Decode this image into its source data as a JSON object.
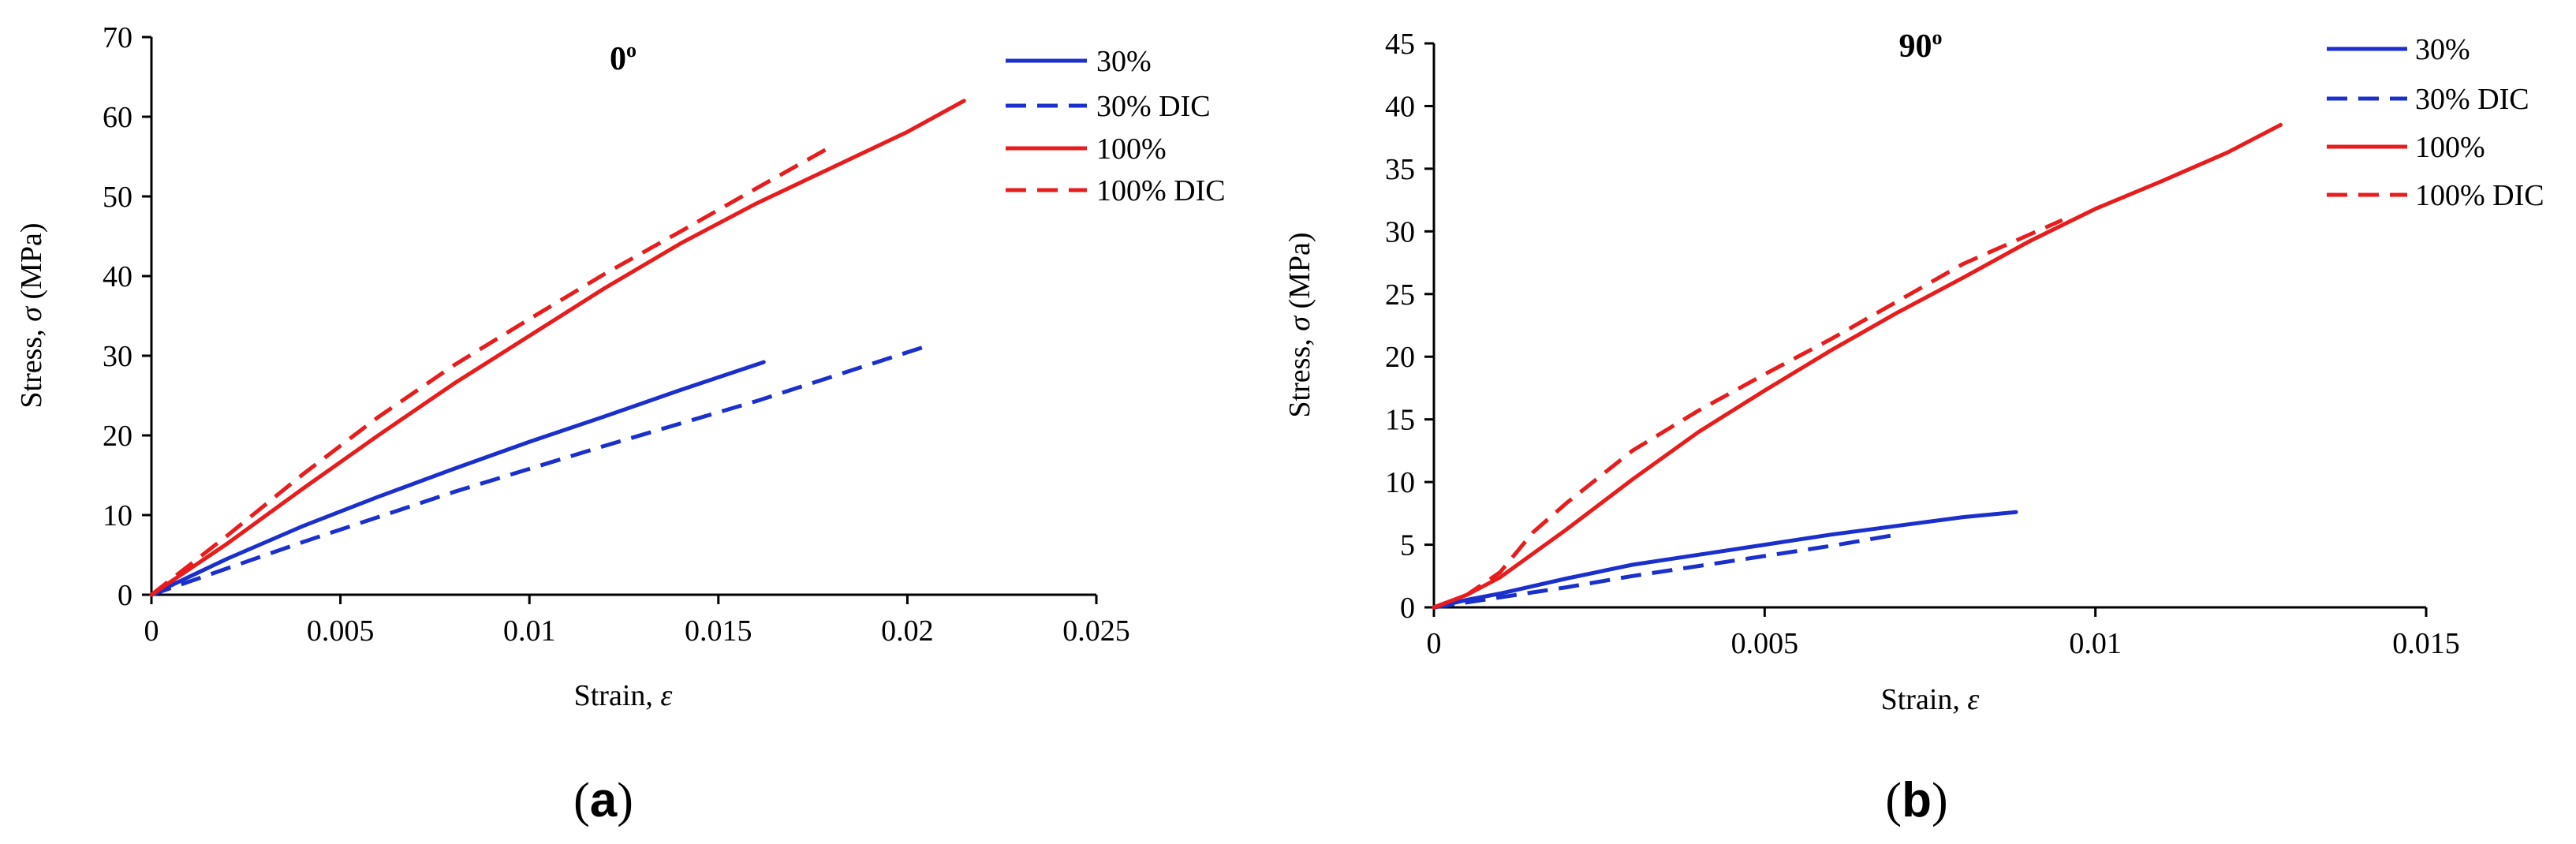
{
  "charts": [
    {
      "panel_label": "(a)",
      "panel_letter": "a",
      "title_main": "0",
      "title_sup": "o",
      "xlabel_text": "Strain, ",
      "xlabel_sym": "ε",
      "ylabel_text": "Stress, ",
      "ylabel_sym": "σ",
      "ylabel_unit": " (MPa)"
    },
    {
      "panel_label": "(b)",
      "panel_letter": "b",
      "title_main": "90",
      "title_sup": "o",
      "xlabel_text": "Strain, ",
      "xlabel_sym": "ε",
      "ylabel_text": "Stress, ",
      "ylabel_sym": "σ",
      "ylabel_unit": " (MPa)"
    }
  ],
  "chart_data": [
    {
      "type": "line",
      "title": "0º",
      "xlabel": "Strain, ε",
      "ylabel": "Stress, σ (MPa)",
      "xlim": [
        0,
        0.025
      ],
      "ylim": [
        0,
        70
      ],
      "xticks": [
        0,
        0.005,
        0.01,
        0.015,
        0.02,
        0.025
      ],
      "xtick_labels": [
        "0",
        "0.005",
        "0.01",
        "0.015",
        "0.02",
        "0.025"
      ],
      "yticks": [
        0,
        10,
        20,
        30,
        40,
        50,
        60,
        70
      ],
      "ytick_labels": [
        "0",
        "10",
        "20",
        "30",
        "40",
        "50",
        "60",
        "70"
      ],
      "legend_position": "top-right",
      "series": [
        {
          "name": "30%",
          "color": "#1a2fcc",
          "dash": false,
          "x": [
            0,
            0.002,
            0.004,
            0.006,
            0.008,
            0.01,
            0.012,
            0.014,
            0.0162
          ],
          "y": [
            0,
            4.5,
            8.6,
            12.3,
            15.8,
            19.2,
            22.4,
            25.7,
            29.2
          ]
        },
        {
          "name": "30% DIC",
          "color": "#1a2fcc",
          "dash": true,
          "x": [
            0,
            0.004,
            0.008,
            0.012,
            0.016,
            0.0205
          ],
          "y": [
            0,
            6.6,
            12.9,
            18.7,
            24.3,
            31.2
          ]
        },
        {
          "name": "100%",
          "color": "#e81c1c",
          "dash": false,
          "x": [
            0,
            0.002,
            0.004,
            0.006,
            0.008,
            0.01,
            0.012,
            0.014,
            0.016,
            0.018,
            0.02,
            0.0215
          ],
          "y": [
            0,
            6.4,
            13.3,
            20.0,
            26.5,
            32.5,
            38.5,
            44.1,
            49.1,
            53.6,
            58.1,
            62.0
          ]
        },
        {
          "name": "100% DIC",
          "color": "#e81c1c",
          "dash": true,
          "x": [
            0,
            0.002,
            0.004,
            0.006,
            0.008,
            0.01,
            0.012,
            0.014,
            0.016,
            0.018
          ],
          "y": [
            0,
            7.4,
            15.1,
            22.3,
            28.8,
            34.6,
            40.3,
            45.6,
            51.0,
            56.3
          ]
        }
      ]
    },
    {
      "type": "line",
      "title": "90º",
      "xlabel": "Strain, ε",
      "ylabel": "Stress, σ (MPa)",
      "xlim": [
        0,
        0.015
      ],
      "ylim": [
        0,
        45
      ],
      "xticks": [
        0,
        0.005,
        0.01,
        0.015
      ],
      "xtick_labels": [
        "0",
        "0.005",
        "0.01",
        "0.015"
      ],
      "yticks": [
        0,
        5,
        10,
        15,
        20,
        25,
        30,
        35,
        40,
        45
      ],
      "ytick_labels": [
        "0",
        "5",
        "10",
        "15",
        "20",
        "25",
        "30",
        "35",
        "40",
        "45"
      ],
      "legend_position": "top-right",
      "series": [
        {
          "name": "30%",
          "color": "#1a2fcc",
          "dash": false,
          "x": [
            0,
            0.0005,
            0.001,
            0.002,
            0.003,
            0.004,
            0.005,
            0.006,
            0.007,
            0.008,
            0.0088
          ],
          "y": [
            0,
            0.6,
            1.1,
            2.3,
            3.4,
            4.2,
            5.0,
            5.8,
            6.5,
            7.2,
            7.6
          ]
        },
        {
          "name": "30% DIC",
          "color": "#1a2fcc",
          "dash": true,
          "x": [
            0,
            0.001,
            0.002,
            0.003,
            0.004,
            0.005,
            0.006,
            0.007
          ],
          "y": [
            0,
            0.8,
            1.6,
            2.5,
            3.3,
            4.1,
            4.9,
            5.8
          ]
        },
        {
          "name": "100%",
          "color": "#e81c1c",
          "dash": false,
          "x": [
            0,
            0.0005,
            0.001,
            0.002,
            0.003,
            0.004,
            0.005,
            0.006,
            0.007,
            0.008,
            0.009,
            0.01,
            0.011,
            0.012,
            0.0128
          ],
          "y": [
            0,
            1.0,
            2.4,
            6.2,
            10.2,
            14.0,
            17.3,
            20.5,
            23.5,
            26.3,
            29.2,
            31.8,
            34.0,
            36.3,
            38.5
          ]
        },
        {
          "name": "100% DIC",
          "color": "#e81c1c",
          "dash": true,
          "x": [
            0,
            0.0005,
            0.001,
            0.0015,
            0.002,
            0.003,
            0.004,
            0.005,
            0.006,
            0.007,
            0.008,
            0.0095
          ],
          "y": [
            0,
            1.0,
            2.8,
            6.0,
            8.3,
            12.5,
            15.7,
            18.6,
            21.4,
            24.4,
            27.4,
            30.9
          ]
        }
      ]
    }
  ]
}
